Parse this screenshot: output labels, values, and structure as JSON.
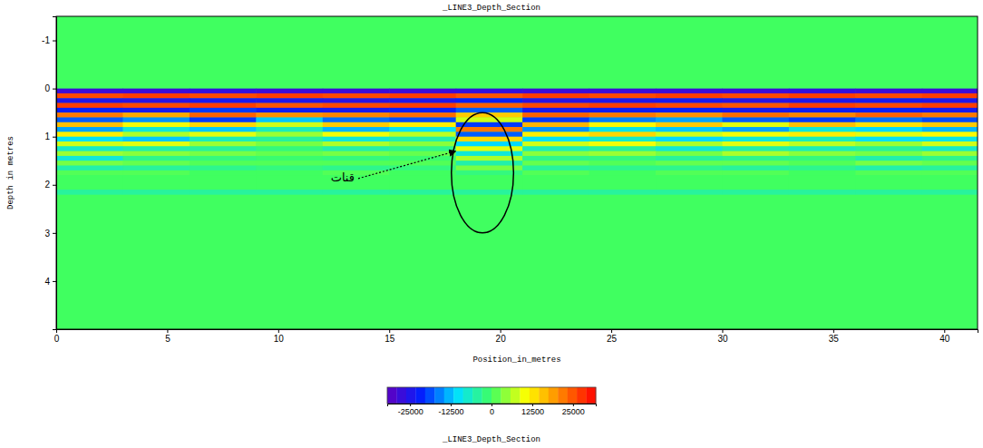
{
  "chart_data": {
    "type": "heatmap",
    "title": "_LINE3_Depth_Section",
    "footer": "_LINE3_Depth_Section",
    "x_label": "Position_in_metres",
    "y_label": "Depth in metres",
    "xlim": [
      0,
      41.5
    ],
    "xticks": [
      0,
      5,
      10,
      15,
      20,
      25,
      30,
      35,
      40
    ],
    "ylim": [
      -1.5,
      5
    ],
    "yticks": [
      -1,
      0,
      1,
      2,
      3,
      4
    ],
    "x_edges": [
      0,
      3,
      6,
      9,
      12,
      15,
      18,
      21,
      24,
      27,
      30,
      33,
      36,
      39,
      41.5
    ],
    "y_edges": [
      0,
      0.1,
      0.2,
      0.3,
      0.4,
      0.5,
      0.6,
      0.7,
      0.8,
      0.9,
      1.0,
      1.1,
      1.2,
      1.3,
      1.4,
      1.5,
      1.6,
      1.7,
      1.8,
      2.1,
      2.2
    ],
    "cells": [
      [
        -28000,
        -28000,
        -27000,
        -28000,
        -28000,
        -28000,
        -27000,
        -28000,
        -28000,
        -28000,
        -28000,
        -27000,
        -28000,
        -28000
      ],
      [
        26000,
        27000,
        26000,
        27000,
        26000,
        27000,
        25000,
        27000,
        26000,
        27000,
        26000,
        27000,
        26000,
        27000
      ],
      [
        -25000,
        -26000,
        -24000,
        -25000,
        -26000,
        -25000,
        -22000,
        -26000,
        -25000,
        -24000,
        -26000,
        -25000,
        -24000,
        -25000
      ],
      [
        27000,
        26000,
        27000,
        25000,
        26000,
        27000,
        24000,
        26000,
        27000,
        26000,
        25000,
        27000,
        26000,
        27000
      ],
      [
        -22000,
        -24000,
        -20000,
        -23000,
        -24000,
        -22000,
        -18000,
        -24000,
        -23000,
        -22000,
        -24000,
        -23000,
        -22000,
        -24000
      ],
      [
        22000,
        18000,
        24000,
        20000,
        21000,
        23000,
        15000,
        24000,
        22000,
        20000,
        23000,
        21000,
        24000,
        22000
      ],
      [
        -18000,
        -15000,
        -20000,
        -12000,
        -17000,
        -19000,
        8000,
        -20000,
        -16000,
        -14000,
        -18000,
        -20000,
        -17000,
        -19000
      ],
      [
        16000,
        10000,
        14000,
        8000,
        15000,
        12000,
        -20000,
        17000,
        11000,
        15000,
        9000,
        16000,
        13000,
        15000
      ],
      [
        -14000,
        -8000,
        -12000,
        -6000,
        -13000,
        -10000,
        22000,
        -15000,
        -9000,
        -12000,
        -14000,
        -8000,
        -11000,
        -13000
      ],
      [
        12000,
        6000,
        9000,
        5000,
        10000,
        7000,
        -18000,
        12000,
        14000,
        8000,
        10000,
        12000,
        9000,
        11000
      ],
      [
        -10000,
        -12000,
        -6000,
        -4000,
        -8000,
        -5000,
        14000,
        -10000,
        -7000,
        -11000,
        -8000,
        -6000,
        -10000,
        -9000
      ],
      [
        8000,
        9000,
        5000,
        3000,
        6000,
        4000,
        -11000,
        8000,
        10000,
        6000,
        9000,
        7000,
        5000,
        8000
      ],
      [
        -7000,
        -5000,
        -4000,
        -2000,
        -5000,
        -3000,
        9000,
        -6000,
        -4000,
        -8000,
        -5000,
        -6000,
        -4000,
        -7000
      ],
      [
        5000,
        4000,
        3000,
        2000,
        3000,
        2000,
        -8000,
        4000,
        5000,
        3000,
        6000,
        4000,
        3000,
        5000
      ],
      [
        -8000,
        -3000,
        -2000,
        -1000,
        -2000,
        -1000,
        6000,
        -3000,
        -2000,
        -4000,
        -3000,
        -2000,
        -5000,
        -3000
      ],
      [
        3000,
        2000,
        1000,
        1000,
        1000,
        1000,
        -5000,
        2000,
        1000,
        2000,
        2000,
        1000,
        3000,
        2000
      ],
      [
        -5000,
        -4000,
        -3000,
        -2000,
        -3000,
        -2000,
        3000,
        -4000,
        -3000,
        -3000,
        -4000,
        -3000,
        -5000,
        -4000
      ],
      [
        1000,
        1000,
        0,
        0,
        1000,
        0,
        -2000,
        1000,
        0,
        1000,
        1000,
        0,
        1000,
        1000
      ],
      [
        0,
        0,
        0,
        0,
        0,
        0,
        0,
        0,
        0,
        0,
        0,
        0,
        0,
        0
      ],
      [
        -4000,
        -4000,
        -4000,
        -4000,
        -4000,
        -4000,
        -4000,
        -4000,
        -4000,
        -4000,
        -4000,
        -4000,
        -4000,
        -4000
      ]
    ],
    "color_range": [
      -32000,
      32000
    ],
    "color_ticks": [
      -25000,
      -12500,
      0,
      12500,
      25000
    ],
    "annotations": [
      {
        "text": "قنات",
        "x": 12.9,
        "y": 1.87,
        "arrow_x": 18.0,
        "arrow_y": 1.3
      }
    ],
    "ellipse": {
      "x": 19.2,
      "y": 1.75,
      "rx": 1.4,
      "ry": 1.25
    }
  }
}
